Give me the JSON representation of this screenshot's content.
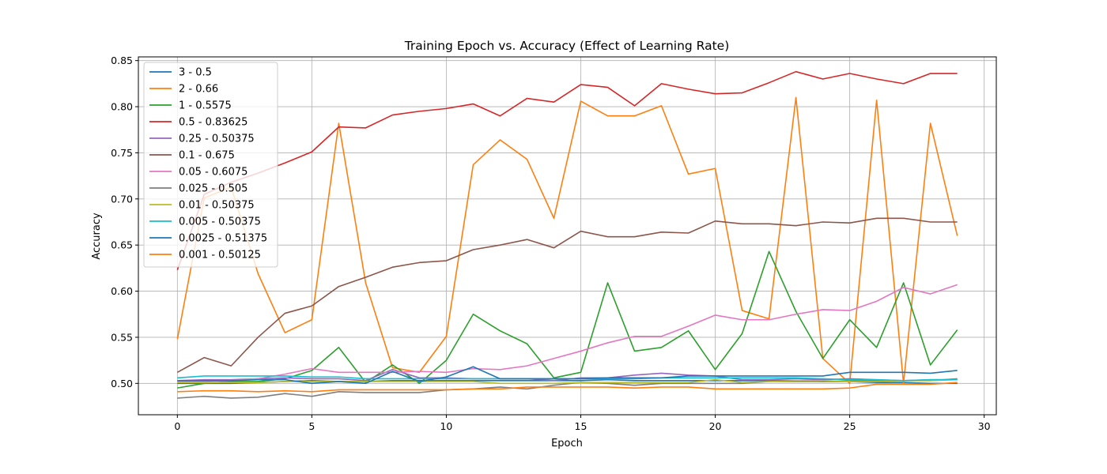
{
  "chart_data": {
    "type": "line",
    "title": "Training Epoch vs. Accuracy (Effect of Learning Rate)",
    "xlabel": "Epoch",
    "ylabel": "Accuracy",
    "xlim": [
      -1.45,
      30.45
    ],
    "ylim": [
      0.466,
      0.854
    ],
    "xticks": [
      0,
      5,
      10,
      15,
      20,
      25,
      30
    ],
    "yticks": [
      0.5,
      0.55,
      0.6,
      0.65,
      0.7,
      0.75,
      0.8,
      0.85
    ],
    "ytick_labels": [
      "0.50",
      "0.55",
      "0.60",
      "0.65",
      "0.70",
      "0.75",
      "0.80",
      "0.85"
    ],
    "grid": true,
    "legend_position": "upper-left",
    "x": [
      0,
      1,
      2,
      3,
      4,
      5,
      6,
      7,
      8,
      9,
      10,
      11,
      12,
      13,
      14,
      15,
      16,
      17,
      18,
      19,
      20,
      21,
      22,
      23,
      24,
      25,
      26,
      27,
      28,
      29
    ],
    "series": [
      {
        "name": "3 - 0.5",
        "color": "#1f77b4",
        "values": [
          0.5,
          0.5,
          0.5,
          0.501,
          0.502,
          0.503,
          0.502,
          0.502,
          0.503,
          0.503,
          0.503,
          0.503,
          0.503,
          0.503,
          0.503,
          0.503,
          0.504,
          0.503,
          0.503,
          0.503,
          0.503,
          0.503,
          0.503,
          0.503,
          0.502,
          0.502,
          0.501,
          0.501,
          0.5,
          0.5
        ]
      },
      {
        "name": "2 - 0.66",
        "color": "#ff7f0e",
        "values": [
          0.548,
          0.701,
          0.713,
          0.619,
          0.555,
          0.569,
          0.782,
          0.609,
          0.517,
          0.512,
          0.551,
          0.737,
          0.764,
          0.743,
          0.679,
          0.806,
          0.79,
          0.79,
          0.801,
          0.727,
          0.733,
          0.579,
          0.57,
          0.81,
          0.527,
          0.5,
          0.807,
          0.5,
          0.782,
          0.66
        ]
      },
      {
        "name": "1 - 0.5575",
        "color": "#2ca02c",
        "values": [
          0.495,
          0.5,
          0.502,
          0.502,
          0.505,
          0.514,
          0.539,
          0.501,
          0.52,
          0.5,
          0.525,
          0.575,
          0.557,
          0.543,
          0.506,
          0.512,
          0.609,
          0.535,
          0.539,
          0.557,
          0.515,
          0.554,
          0.643,
          0.578,
          0.527,
          0.569,
          0.539,
          0.609,
          0.52,
          0.558
        ]
      },
      {
        "name": "0.5 - 0.83625",
        "color": "#d62728",
        "values": [
          0.623,
          0.705,
          0.718,
          0.728,
          0.739,
          0.751,
          0.778,
          0.777,
          0.791,
          0.795,
          0.798,
          0.803,
          0.79,
          0.809,
          0.805,
          0.824,
          0.821,
          0.801,
          0.825,
          0.819,
          0.814,
          0.815,
          0.826,
          0.838,
          0.83,
          0.836,
          0.83,
          0.825,
          0.836,
          0.836
        ]
      },
      {
        "name": "0.25 - 0.50375",
        "color": "#9467bd",
        "values": [
          0.503,
          0.504,
          0.504,
          0.505,
          0.506,
          0.505,
          0.505,
          0.503,
          0.515,
          0.506,
          0.506,
          0.505,
          0.505,
          0.505,
          0.503,
          0.506,
          0.506,
          0.509,
          0.511,
          0.509,
          0.508,
          0.504,
          0.504,
          0.505,
          0.504,
          0.505,
          0.504,
          0.503,
          0.504,
          0.504
        ]
      },
      {
        "name": "0.1 - 0.675",
        "color": "#8c564b",
        "values": [
          0.512,
          0.528,
          0.519,
          0.55,
          0.576,
          0.584,
          0.605,
          0.615,
          0.626,
          0.631,
          0.633,
          0.645,
          0.65,
          0.656,
          0.647,
          0.665,
          0.659,
          0.659,
          0.664,
          0.663,
          0.676,
          0.673,
          0.673,
          0.671,
          0.675,
          0.674,
          0.679,
          0.679,
          0.675,
          0.675
        ]
      },
      {
        "name": "0.05 - 0.6075",
        "color": "#e377c2",
        "values": [
          0.502,
          0.502,
          0.503,
          0.505,
          0.51,
          0.516,
          0.512,
          0.512,
          0.512,
          0.513,
          0.512,
          0.516,
          0.515,
          0.519,
          0.527,
          0.535,
          0.544,
          0.551,
          0.551,
          0.562,
          0.574,
          0.569,
          0.569,
          0.575,
          0.58,
          0.579,
          0.589,
          0.604,
          0.597,
          0.607
        ]
      },
      {
        "name": "0.025 - 0.505",
        "color": "#7f7f7f",
        "values": [
          0.484,
          0.486,
          0.484,
          0.485,
          0.489,
          0.486,
          0.491,
          0.49,
          0.49,
          0.49,
          0.493,
          0.494,
          0.496,
          0.494,
          0.498,
          0.501,
          0.5,
          0.498,
          0.5,
          0.5,
          0.5,
          0.5,
          0.502,
          0.502,
          0.502,
          0.503,
          0.503,
          0.503,
          0.503,
          0.505
        ]
      },
      {
        "name": "0.01 - 0.50375",
        "color": "#bcbd22",
        "values": [
          0.501,
          0.501,
          0.501,
          0.501,
          0.502,
          0.502,
          0.502,
          0.502,
          0.502,
          0.502,
          0.502,
          0.502,
          0.5,
          0.5,
          0.5,
          0.501,
          0.501,
          0.501,
          0.501,
          0.501,
          0.504,
          0.501,
          0.502,
          0.503,
          0.503,
          0.502,
          0.502,
          0.503,
          0.503,
          0.504
        ]
      },
      {
        "name": "0.005 - 0.50375",
        "color": "#17becf",
        "values": [
          0.506,
          0.508,
          0.508,
          0.508,
          0.508,
          0.507,
          0.507,
          0.505,
          0.505,
          0.505,
          0.505,
          0.505,
          0.505,
          0.505,
          0.505,
          0.505,
          0.505,
          0.505,
          0.506,
          0.506,
          0.506,
          0.506,
          0.506,
          0.506,
          0.505,
          0.504,
          0.504,
          0.503,
          0.504,
          0.504
        ]
      },
      {
        "name": "0.0025 - 0.51375",
        "color": "#1f77b4",
        "values": [
          0.503,
          0.503,
          0.503,
          0.504,
          0.504,
          0.5,
          0.502,
          0.5,
          0.513,
          0.502,
          0.507,
          0.518,
          0.505,
          0.505,
          0.505,
          0.505,
          0.506,
          0.506,
          0.506,
          0.508,
          0.508,
          0.508,
          0.508,
          0.508,
          0.508,
          0.512,
          0.512,
          0.512,
          0.511,
          0.514
        ]
      },
      {
        "name": "0.001 - 0.50125",
        "color": "#ff7f0e",
        "values": [
          0.491,
          0.492,
          0.492,
          0.491,
          0.492,
          0.491,
          0.493,
          0.493,
          0.493,
          0.493,
          0.493,
          0.494,
          0.494,
          0.496,
          0.496,
          0.496,
          0.496,
          0.495,
          0.496,
          0.496,
          0.494,
          0.494,
          0.494,
          0.494,
          0.494,
          0.495,
          0.499,
          0.499,
          0.499,
          0.501
        ]
      }
    ]
  }
}
